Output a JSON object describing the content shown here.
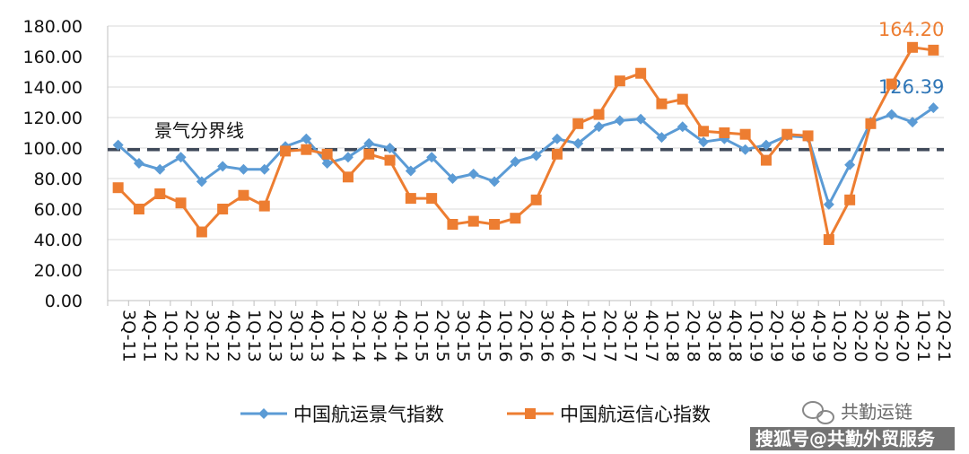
{
  "chart_data": {
    "type": "line",
    "title": "",
    "xlabel": "",
    "ylabel": "",
    "ylim": [
      0,
      180
    ],
    "yticks": [
      "0.00",
      "20.00",
      "40.00",
      "60.00",
      "80.00",
      "100.00",
      "120.00",
      "140.00",
      "160.00",
      "180.00"
    ],
    "grid": true,
    "categories": [
      "3Q-11",
      "4Q-11",
      "1Q-12",
      "2Q-12",
      "3Q-12",
      "4Q-12",
      "1Q-13",
      "2Q-13",
      "3Q-13",
      "4Q-13",
      "1Q-14",
      "2Q-14",
      "3Q-14",
      "4Q-14",
      "1Q-15",
      "2Q-15",
      "3Q-15",
      "4Q-15",
      "1Q-16",
      "2Q-16",
      "3Q-16",
      "4Q-16",
      "1Q-17",
      "2Q-17",
      "3Q-17",
      "4Q-17",
      "1Q-18",
      "2Q-18",
      "3Q-18",
      "4Q-18",
      "1Q-19",
      "2Q-19",
      "3Q-19",
      "4Q-19",
      "1Q-20",
      "2Q-20",
      "3Q-20",
      "4Q-20",
      "1Q-21",
      "2Q-21"
    ],
    "series": [
      {
        "name": "中国航运景气指数",
        "color": "#5b9bd5",
        "marker": "diamond",
        "values": [
          102,
          90,
          86,
          94,
          78,
          88,
          86,
          86,
          101,
          106,
          90,
          94,
          103,
          100,
          85,
          94,
          80,
          83,
          78,
          91,
          95,
          106,
          103,
          114,
          118,
          119,
          107,
          114,
          104,
          106,
          99,
          102,
          108,
          107,
          63,
          89,
          117,
          122,
          117,
          126.39
        ],
        "end_label": "126.39"
      },
      {
        "name": "中国航运信心指数",
        "color": "#ed7d31",
        "marker": "square",
        "values": [
          74,
          60,
          70,
          64,
          45,
          60,
          69,
          62,
          98,
          99,
          96,
          81,
          96,
          92,
          67,
          67,
          50,
          52,
          50,
          54,
          66,
          96,
          116,
          122,
          144,
          149,
          129,
          132,
          111,
          110,
          109,
          92,
          109,
          108,
          40,
          66,
          116,
          142,
          166,
          164.2
        ],
        "end_label": "164.20"
      }
    ],
    "reference_line": {
      "value": 99,
      "label": "景气分界线"
    },
    "legend": {
      "position": "bottom"
    }
  },
  "watermark": {
    "brand": "共勤运链",
    "source": "搜狐号@共勤外贸服务"
  }
}
